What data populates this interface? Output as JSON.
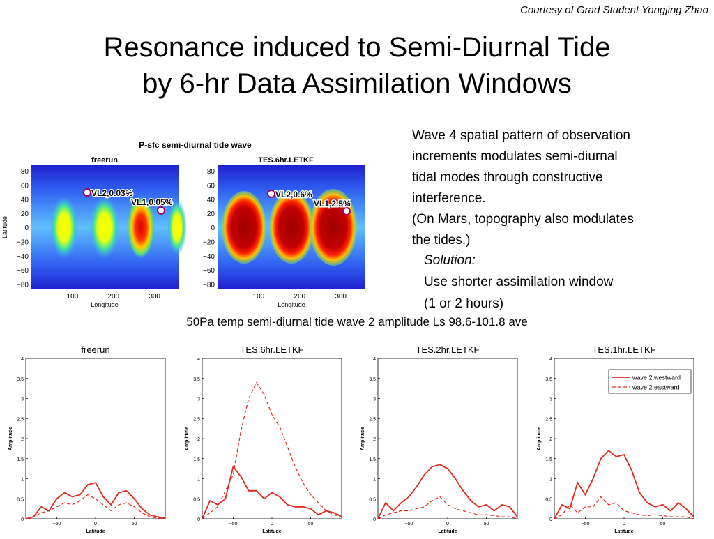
{
  "courtesy": "Courtesy of Grad Student Yongjing Zhao",
  "title_line1": "Resonance induced to Semi-Diurnal Tide",
  "title_line2": "by 6-hr Data Assimilation  Windows",
  "body": {
    "line1": "Wave 4 spatial pattern of observation",
    "line2": "increments modulates semi-diurnal",
    "line3": "tidal modes through constructive",
    "line4": "interference.",
    "line5": "(On Mars, topography also modulates",
    "line6": "the tides.)"
  },
  "solution": {
    "label": "Solution:",
    "line1": "Use shorter assimilation window",
    "line2": "(1 or 2 hours)"
  },
  "maps": {
    "title": "P-sfc semi-diurnal tide wave",
    "ylabel": "Latitude",
    "xlabel": "Longitude",
    "yticks": [
      "80",
      "60",
      "40",
      "20",
      "0",
      "−20",
      "−40",
      "−60",
      "−80"
    ],
    "xticks": [
      "100",
      "200",
      "300"
    ],
    "panels": [
      {
        "title": "freerun",
        "marker1": "VL2,0.03%",
        "marker2": "VL1,0.05%"
      },
      {
        "title": "TES.6hr.LETKF",
        "marker1": "VL2,0.6%",
        "marker2": "VL1,2.5%"
      }
    ]
  },
  "tides_title": "50Pa temp semi-diurnal tide wave 2 amplitude Ls 98.6-101.8 ave",
  "chart_data": [
    {
      "type": "line",
      "title": "freerun",
      "xlabel": "Latitude",
      "ylabel": "Amplitude",
      "xlim": [
        -90,
        90
      ],
      "ylim": [
        0,
        4
      ],
      "xticks": [
        -50,
        0,
        50
      ],
      "yticks": [
        0,
        0.5,
        1,
        1.5,
        2,
        2.5,
        3,
        3.5,
        4
      ],
      "x": [
        -90,
        -80,
        -70,
        -60,
        -50,
        -40,
        -30,
        -20,
        -10,
        0,
        10,
        20,
        30,
        40,
        50,
        60,
        70,
        80,
        90
      ],
      "series": [
        {
          "name": "wave 2,westward",
          "values": [
            0.0,
            0.05,
            0.3,
            0.2,
            0.5,
            0.65,
            0.55,
            0.6,
            0.85,
            0.9,
            0.55,
            0.35,
            0.65,
            0.7,
            0.5,
            0.25,
            0.1,
            0.05,
            0.02
          ]
        },
        {
          "name": "wave 2,eastward",
          "values": [
            0.0,
            0.05,
            0.15,
            0.2,
            0.3,
            0.4,
            0.35,
            0.45,
            0.6,
            0.5,
            0.35,
            0.2,
            0.35,
            0.4,
            0.3,
            0.15,
            0.05,
            0.02,
            0.0
          ]
        }
      ]
    },
    {
      "type": "line",
      "title": "TES.6hr.LETKF",
      "xlabel": "Latitude",
      "ylabel": "Amplitude",
      "xlim": [
        -90,
        90
      ],
      "ylim": [
        0,
        4
      ],
      "xticks": [
        -50,
        0,
        50
      ],
      "yticks": [
        0,
        0.5,
        1,
        1.5,
        2,
        2.5,
        3,
        3.5,
        4
      ],
      "x": [
        -90,
        -80,
        -70,
        -60,
        -50,
        -40,
        -30,
        -20,
        -10,
        0,
        10,
        20,
        30,
        40,
        50,
        60,
        70,
        80,
        90
      ],
      "series": [
        {
          "name": "wave 2,westward",
          "values": [
            0.0,
            0.45,
            0.35,
            0.5,
            1.3,
            1.05,
            0.7,
            0.7,
            0.5,
            0.65,
            0.55,
            0.35,
            0.3,
            0.3,
            0.25,
            0.1,
            0.2,
            0.15,
            0.05
          ]
        },
        {
          "name": "wave 2,eastward",
          "values": [
            0.0,
            0.15,
            0.3,
            0.7,
            1.1,
            2.2,
            3.0,
            3.4,
            3.1,
            2.6,
            2.3,
            1.8,
            1.3,
            0.9,
            0.6,
            0.4,
            0.2,
            0.1,
            0.05
          ]
        }
      ]
    },
    {
      "type": "line",
      "title": "TES.2hr.LETKF",
      "xlabel": "Latitude",
      "ylabel": "Amplitude",
      "xlim": [
        -90,
        90
      ],
      "ylim": [
        0,
        4
      ],
      "xticks": [
        -50,
        0,
        50
      ],
      "yticks": [
        0,
        0.5,
        1,
        1.5,
        2,
        2.5,
        3,
        3.5,
        4
      ],
      "x": [
        -90,
        -80,
        -70,
        -60,
        -50,
        -40,
        -30,
        -20,
        -10,
        0,
        10,
        20,
        30,
        40,
        50,
        60,
        70,
        80,
        90
      ],
      "series": [
        {
          "name": "wave 2,westward",
          "values": [
            0.0,
            0.4,
            0.2,
            0.4,
            0.55,
            0.8,
            1.1,
            1.3,
            1.35,
            1.25,
            1.0,
            0.7,
            0.45,
            0.3,
            0.35,
            0.2,
            0.35,
            0.3,
            0.05
          ]
        },
        {
          "name": "wave 2,eastward",
          "values": [
            0.0,
            0.1,
            0.15,
            0.2,
            0.2,
            0.25,
            0.3,
            0.45,
            0.55,
            0.35,
            0.25,
            0.2,
            0.15,
            0.1,
            0.1,
            0.08,
            0.05,
            0.05,
            0.0
          ]
        }
      ]
    },
    {
      "type": "line",
      "title": "TES.1hr.LETKF",
      "xlabel": "Latitude",
      "ylabel": "Amplitude",
      "xlim": [
        -90,
        90
      ],
      "ylim": [
        0,
        4
      ],
      "xticks": [
        -50,
        0,
        50
      ],
      "yticks": [
        0,
        0.5,
        1,
        1.5,
        2,
        2.5,
        3,
        3.5,
        4
      ],
      "legend": "top-right",
      "x": [
        -90,
        -80,
        -70,
        -60,
        -50,
        -40,
        -30,
        -20,
        -10,
        0,
        10,
        20,
        30,
        40,
        50,
        60,
        70,
        80,
        90
      ],
      "series": [
        {
          "name": "wave 2,westward",
          "values": [
            0.0,
            0.35,
            0.25,
            0.9,
            0.6,
            1.0,
            1.5,
            1.7,
            1.55,
            1.6,
            1.2,
            0.65,
            0.4,
            0.3,
            0.35,
            0.2,
            0.4,
            0.25,
            0.05
          ]
        },
        {
          "name": "wave 2,eastward",
          "values": [
            0.0,
            0.1,
            0.35,
            0.15,
            0.3,
            0.3,
            0.55,
            0.35,
            0.4,
            0.2,
            0.15,
            0.1,
            0.08,
            0.1,
            0.08,
            0.05,
            0.05,
            0.05,
            0.0
          ]
        }
      ]
    }
  ],
  "colors": {
    "line": "#e0281e",
    "text": "#000000"
  }
}
